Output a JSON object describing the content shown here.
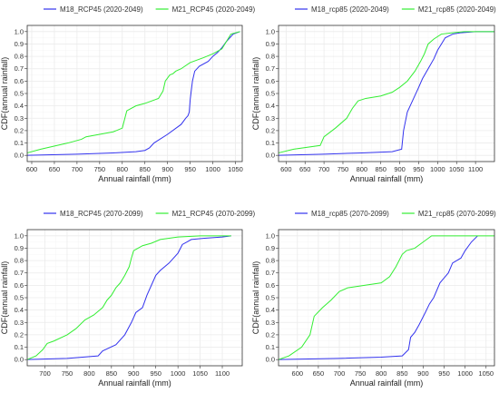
{
  "colors": {
    "blue": "#3333ee",
    "green": "#33ee33",
    "grid": "#ebebeb",
    "axis": "#333333"
  },
  "chart_data": [
    {
      "type": "line",
      "xlabel": "Annual rainfall (mm)",
      "ylabel": "CDF(annual rainfall)",
      "xlim": [
        590,
        1065
      ],
      "ylim": [
        -0.05,
        1.05
      ],
      "xticks": [
        600,
        650,
        700,
        750,
        800,
        850,
        900,
        950,
        1000,
        1050
      ],
      "yticks": [
        0.0,
        0.1,
        0.2,
        0.3,
        0.4,
        0.5,
        0.6,
        0.7,
        0.8,
        0.9,
        1.0
      ],
      "grid": true,
      "legend": "top",
      "series": [
        {
          "name": "M18_RCP45 (2020-2049)",
          "color": "#3333ee",
          "x": [
            590,
            700,
            780,
            830,
            850,
            860,
            870,
            900,
            930,
            940,
            945,
            948,
            950,
            955,
            960,
            970,
            990,
            1000,
            1010,
            1020,
            1030,
            1045,
            1060
          ],
          "y": [
            0.0,
            0.01,
            0.02,
            0.03,
            0.04,
            0.06,
            0.1,
            0.17,
            0.25,
            0.3,
            0.32,
            0.35,
            0.45,
            0.6,
            0.68,
            0.72,
            0.76,
            0.8,
            0.83,
            0.87,
            0.92,
            0.98,
            1.0
          ]
        },
        {
          "name": "M21_RCP45 (2020-2049)",
          "color": "#33ee33",
          "x": [
            590,
            620,
            680,
            710,
            720,
            780,
            800,
            810,
            830,
            850,
            880,
            890,
            895,
            905,
            912,
            918,
            930,
            950,
            980,
            1000,
            1020,
            1030,
            1040,
            1060
          ],
          "y": [
            0.02,
            0.05,
            0.1,
            0.13,
            0.15,
            0.19,
            0.22,
            0.36,
            0.4,
            0.42,
            0.46,
            0.52,
            0.6,
            0.65,
            0.66,
            0.68,
            0.7,
            0.75,
            0.79,
            0.82,
            0.86,
            0.92,
            0.98,
            1.0
          ]
        }
      ]
    },
    {
      "type": "line",
      "xlabel": "Annual rainfall (mm)",
      "ylabel": "CDF(annual rainfall)",
      "xlim": [
        580,
        1150
      ],
      "ylim": [
        -0.05,
        1.05
      ],
      "xticks": [
        600,
        650,
        700,
        750,
        800,
        850,
        900,
        950,
        1000,
        1050,
        1100
      ],
      "yticks": [
        0.0,
        0.1,
        0.2,
        0.3,
        0.4,
        0.5,
        0.6,
        0.7,
        0.8,
        0.9,
        1.0
      ],
      "grid": true,
      "legend": "top",
      "series": [
        {
          "name": "M18_rcp85 (2020-2049)",
          "color": "#3333ee",
          "x": [
            580,
            700,
            800,
            880,
            905,
            910,
            920,
            935,
            950,
            960,
            975,
            990,
            1000,
            1010,
            1020,
            1040,
            1060,
            1100,
            1150
          ],
          "y": [
            0.0,
            0.01,
            0.02,
            0.03,
            0.05,
            0.2,
            0.35,
            0.45,
            0.55,
            0.62,
            0.7,
            0.78,
            0.85,
            0.9,
            0.95,
            0.98,
            0.99,
            1.0,
            1.0
          ]
        },
        {
          "name": "M21_rcp85 (2020-2049)",
          "color": "#33ee33",
          "x": [
            580,
            620,
            690,
            700,
            730,
            760,
            775,
            790,
            810,
            850,
            880,
            900,
            920,
            940,
            955,
            965,
            975,
            990,
            1010,
            1040,
            1070,
            1150
          ],
          "y": [
            0.02,
            0.05,
            0.08,
            0.15,
            0.22,
            0.3,
            0.38,
            0.44,
            0.46,
            0.48,
            0.51,
            0.55,
            0.6,
            0.68,
            0.76,
            0.82,
            0.9,
            0.94,
            0.98,
            0.99,
            1.0,
            1.0
          ]
        }
      ]
    },
    {
      "type": "line",
      "xlabel": "Annual rainfall (mm)",
      "ylabel": "CDF(annual rainfall)",
      "xlim": [
        660,
        1145
      ],
      "ylim": [
        -0.05,
        1.05
      ],
      "xticks": [
        700,
        750,
        800,
        850,
        900,
        950,
        1000,
        1050,
        1100
      ],
      "yticks": [
        0.0,
        0.1,
        0.2,
        0.3,
        0.4,
        0.5,
        0.6,
        0.7,
        0.8,
        0.9,
        1.0
      ],
      "grid": true,
      "legend": "top",
      "series": [
        {
          "name": "M18_RCP45 (2070-2099)",
          "color": "#3333ee",
          "x": [
            660,
            750,
            820,
            830,
            860,
            880,
            895,
            905,
            920,
            930,
            940,
            950,
            960,
            980,
            1000,
            1010,
            1020,
            1030,
            1060,
            1100,
            1120
          ],
          "y": [
            0.0,
            0.01,
            0.03,
            0.07,
            0.12,
            0.2,
            0.3,
            0.38,
            0.42,
            0.52,
            0.6,
            0.68,
            0.72,
            0.78,
            0.86,
            0.93,
            0.95,
            0.97,
            0.98,
            0.99,
            1.0
          ]
        },
        {
          "name": "M21_RCP45 (2070-2099)",
          "color": "#33ee33",
          "x": [
            660,
            680,
            695,
            705,
            720,
            750,
            770,
            790,
            810,
            830,
            840,
            850,
            860,
            870,
            880,
            890,
            895,
            900,
            910,
            920,
            940,
            960,
            1000,
            1050,
            1120
          ],
          "y": [
            0.0,
            0.03,
            0.08,
            0.13,
            0.15,
            0.2,
            0.25,
            0.32,
            0.36,
            0.42,
            0.48,
            0.52,
            0.58,
            0.62,
            0.68,
            0.75,
            0.82,
            0.88,
            0.9,
            0.92,
            0.94,
            0.97,
            0.99,
            1.0,
            1.0
          ]
        }
      ]
    },
    {
      "type": "line",
      "xlabel": "Annual rainfall (mm)",
      "ylabel": "CDF(annual rainfall)",
      "xlim": [
        555,
        1070
      ],
      "ylim": [
        -0.05,
        1.05
      ],
      "xticks": [
        600,
        650,
        700,
        750,
        800,
        850,
        900,
        950,
        1000,
        1050
      ],
      "yticks": [
        0.0,
        0.1,
        0.2,
        0.3,
        0.4,
        0.5,
        0.6,
        0.7,
        0.8,
        0.9,
        1.0
      ],
      "grid": true,
      "legend": "top",
      "series": [
        {
          "name": "M18_rcp85 (2070-2099)",
          "color": "#3333ee",
          "x": [
            555,
            700,
            800,
            850,
            865,
            870,
            880,
            890,
            905,
            915,
            925,
            940,
            950,
            960,
            970,
            990,
            1000,
            1015,
            1030
          ],
          "y": [
            0.0,
            0.01,
            0.02,
            0.03,
            0.08,
            0.18,
            0.22,
            0.28,
            0.38,
            0.45,
            0.5,
            0.62,
            0.66,
            0.7,
            0.78,
            0.82,
            0.88,
            0.95,
            1.0
          ]
        },
        {
          "name": "M21_rcp85 (2070-2099)",
          "color": "#33ee33",
          "x": [
            555,
            580,
            610,
            630,
            640,
            660,
            680,
            700,
            720,
            760,
            800,
            820,
            835,
            850,
            860,
            880,
            900,
            920,
            1070
          ],
          "y": [
            0.0,
            0.03,
            0.1,
            0.2,
            0.35,
            0.42,
            0.48,
            0.55,
            0.58,
            0.6,
            0.62,
            0.67,
            0.75,
            0.85,
            0.88,
            0.9,
            0.95,
            1.0,
            1.0
          ]
        }
      ]
    }
  ]
}
